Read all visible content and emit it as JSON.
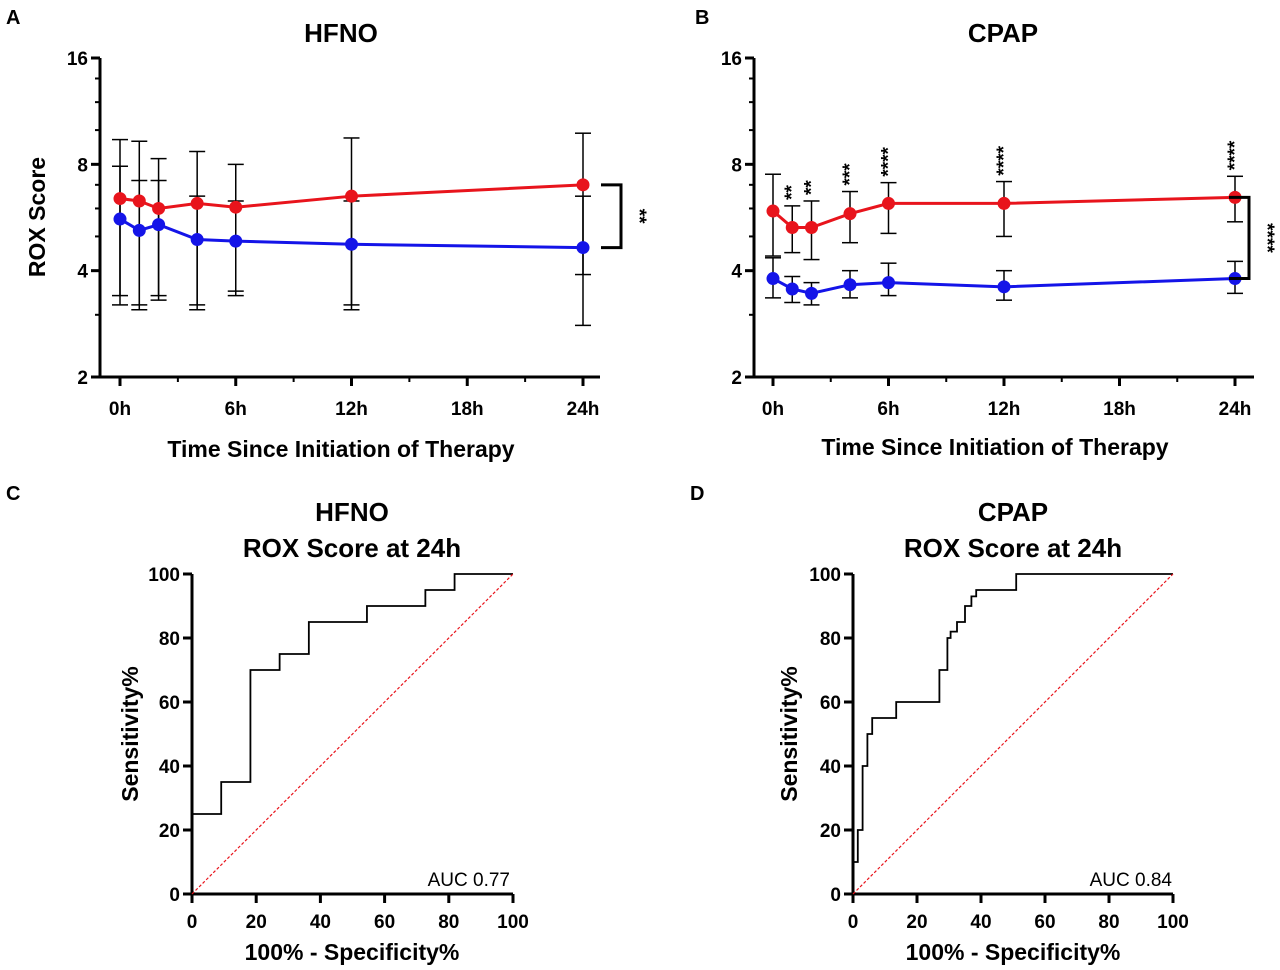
{
  "chart_data": [
    {
      "panel": "A",
      "type": "line",
      "title": "HFNO",
      "xlabel": "Time Since Initiation of Therapy",
      "ylabel": "ROX Score",
      "yscale": "log2",
      "ylim": [
        2,
        16
      ],
      "xlim": [
        0,
        24
      ],
      "yticks": [
        2,
        4,
        8,
        16
      ],
      "ytick_labels": [
        "2",
        "4",
        "8",
        "16"
      ],
      "xticks": [
        0,
        6,
        12,
        18,
        24
      ],
      "xtick_labels": [
        "0h",
        "6h",
        "12h",
        "18h",
        "24h"
      ],
      "grid": false,
      "series": [
        {
          "color": "#e8141c",
          "x": [
            0,
            1,
            2,
            4,
            6,
            12,
            24
          ],
          "y": [
            6.4,
            6.3,
            6.0,
            6.2,
            6.05,
            6.5,
            7.0
          ],
          "err_low": [
            3.2,
            3.1,
            3.3,
            3.1,
            3.4,
            3.1,
            3.9
          ],
          "err_high": [
            9.4,
            9.3,
            8.3,
            8.7,
            8.0,
            9.5,
            9.8
          ]
        },
        {
          "color": "#1414e8",
          "x": [
            0,
            1,
            2,
            4,
            6,
            12,
            24
          ],
          "y": [
            5.6,
            5.2,
            5.4,
            4.9,
            4.85,
            4.75,
            4.65
          ],
          "err_low": [
            3.4,
            3.2,
            3.4,
            3.2,
            3.5,
            3.2,
            2.8
          ],
          "err_high": [
            7.9,
            7.2,
            7.2,
            6.5,
            6.3,
            6.3,
            6.5
          ]
        }
      ],
      "significance": [
        {
          "label": "**",
          "type": "bracket",
          "y_from": 7.0,
          "y_to": 4.65
        }
      ]
    },
    {
      "panel": "B",
      "type": "line",
      "title": "CPAP",
      "xlabel": "Time Since Initiation of Therapy",
      "ylabel": "",
      "yscale": "log2",
      "ylim": [
        2,
        16
      ],
      "xlim": [
        0,
        24
      ],
      "yticks": [
        2,
        4,
        8,
        16
      ],
      "ytick_labels": [
        "2",
        "4",
        "8",
        "16"
      ],
      "xticks": [
        0,
        6,
        12,
        18,
        24
      ],
      "xtick_labels": [
        "0h",
        "6h",
        "12h",
        "18h",
        "24h"
      ],
      "grid": false,
      "series": [
        {
          "color": "#e8141c",
          "x": [
            0,
            1,
            2,
            4,
            6,
            12,
            24
          ],
          "y": [
            5.9,
            5.3,
            5.3,
            5.8,
            6.2,
            6.2,
            6.45
          ],
          "err_low": [
            4.4,
            4.5,
            4.3,
            4.8,
            5.1,
            5.0,
            5.5
          ],
          "err_high": [
            7.5,
            6.1,
            6.3,
            6.7,
            7.1,
            7.15,
            7.4
          ]
        },
        {
          "color": "#1414e8",
          "x": [
            0,
            1,
            2,
            4,
            6,
            12,
            24
          ],
          "y": [
            3.8,
            3.55,
            3.45,
            3.65,
            3.7,
            3.6,
            3.8
          ],
          "err_low": [
            3.35,
            3.25,
            3.2,
            3.35,
            3.4,
            3.3,
            3.45
          ],
          "err_high": [
            4.35,
            3.85,
            3.7,
            4.0,
            4.2,
            4.0,
            4.25
          ]
        }
      ],
      "significance": [
        {
          "label": "**",
          "x": 1
        },
        {
          "label": "**",
          "x": 2
        },
        {
          "label": "***",
          "x": 4
        },
        {
          "label": "****",
          "x": 6
        },
        {
          "label": "****",
          "x": 12
        },
        {
          "label": "****",
          "x": 24
        },
        {
          "label": "****",
          "type": "bracket",
          "y_from": 6.45,
          "y_to": 3.8
        }
      ]
    },
    {
      "panel": "C",
      "type": "line",
      "title": "HFNO",
      "subtitle": "ROX Score at 24h",
      "xlabel": "100% - Specificity%",
      "ylabel": "Sensitivity%",
      "xlim": [
        0,
        100
      ],
      "ylim": [
        0,
        100
      ],
      "xticks": [
        0,
        20,
        40,
        60,
        80,
        100
      ],
      "yticks": [
        0,
        20,
        40,
        60,
        80,
        100
      ],
      "grid": false,
      "annotation": "AUC 0.77",
      "series": [
        {
          "color": "#000000",
          "step": true,
          "x": [
            0,
            0,
            9.1,
            9.1,
            18.2,
            18.2,
            27.3,
            27.3,
            36.4,
            36.4,
            54.5,
            54.5,
            72.7,
            72.7,
            81.8,
            81.8,
            100
          ],
          "y": [
            0,
            25,
            25,
            35,
            35,
            70,
            70,
            75,
            75,
            85,
            85,
            90,
            90,
            95,
            95,
            100,
            100
          ]
        },
        {
          "color": "#e8141c",
          "dashed": true,
          "x": [
            0,
            100
          ],
          "y": [
            0,
            100
          ]
        }
      ]
    },
    {
      "panel": "D",
      "type": "line",
      "title": "CPAP",
      "subtitle": "ROX Score at 24h",
      "xlabel": "100% - Specificity%",
      "ylabel": "Sensitivity%",
      "xlim": [
        0,
        100
      ],
      "ylim": [
        0,
        100
      ],
      "xticks": [
        0,
        20,
        40,
        60,
        80,
        100
      ],
      "yticks": [
        0,
        20,
        40,
        60,
        80,
        100
      ],
      "grid": false,
      "annotation": "AUC 0.84",
      "series": [
        {
          "color": "#000000",
          "step": true,
          "x": [
            0,
            0,
            1.5,
            1.5,
            3,
            3,
            4.5,
            4.5,
            6,
            6,
            13.5,
            13.5,
            27,
            27,
            29.5,
            29.5,
            30.5,
            30.5,
            32.5,
            32.5,
            35,
            35,
            37,
            37,
            38.5,
            38.5,
            51,
            51,
            100
          ],
          "y": [
            0,
            10,
            10,
            20,
            20,
            40,
            40,
            50,
            50,
            55,
            55,
            60,
            60,
            70,
            70,
            80,
            80,
            82,
            82,
            85,
            85,
            90,
            90,
            93,
            93,
            95,
            95,
            100,
            100
          ]
        },
        {
          "color": "#e8141c",
          "dashed": true,
          "x": [
            0,
            100
          ],
          "y": [
            0,
            100
          ]
        }
      ]
    }
  ]
}
